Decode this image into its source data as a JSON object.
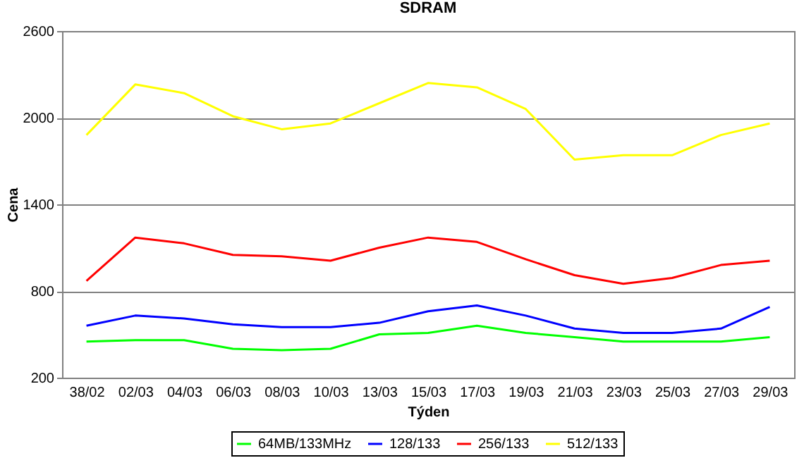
{
  "chart_data": {
    "type": "line",
    "title": "SDRAM",
    "xlabel": "Týden",
    "ylabel": "Cena",
    "categories": [
      "38/02",
      "02/03",
      "04/03",
      "06/03",
      "08/03",
      "10/03",
      "13/03",
      "15/03",
      "17/03",
      "19/03",
      "21/03",
      "23/03",
      "25/03",
      "27/03",
      "29/03"
    ],
    "series": [
      {
        "name": "64MB/133MHz",
        "color": "#00ff00",
        "values": [
          450,
          460,
          460,
          400,
          390,
          400,
          500,
          510,
          560,
          510,
          480,
          450,
          450,
          450,
          480
        ]
      },
      {
        "name": "128/133",
        "color": "#0000ff",
        "values": [
          560,
          630,
          610,
          570,
          550,
          550,
          580,
          660,
          700,
          630,
          540,
          510,
          510,
          540,
          690
        ]
      },
      {
        "name": "256/133",
        "color": "#ff0000",
        "values": [
          870,
          1170,
          1130,
          1050,
          1040,
          1010,
          1100,
          1170,
          1140,
          1020,
          910,
          850,
          890,
          980,
          1010
        ]
      },
      {
        "name": "512/133",
        "color": "#ffff00",
        "values": [
          1880,
          2230,
          2170,
          2010,
          1920,
          1960,
          2100,
          2240,
          2210,
          2060,
          1710,
          1740,
          1740,
          1880,
          1960
        ]
      }
    ],
    "ylim": [
      200,
      2600
    ],
    "yticks": [
      200,
      800,
      1400,
      2000,
      2600
    ],
    "grid": "y",
    "legend": "bottom",
    "marker": "none"
  }
}
